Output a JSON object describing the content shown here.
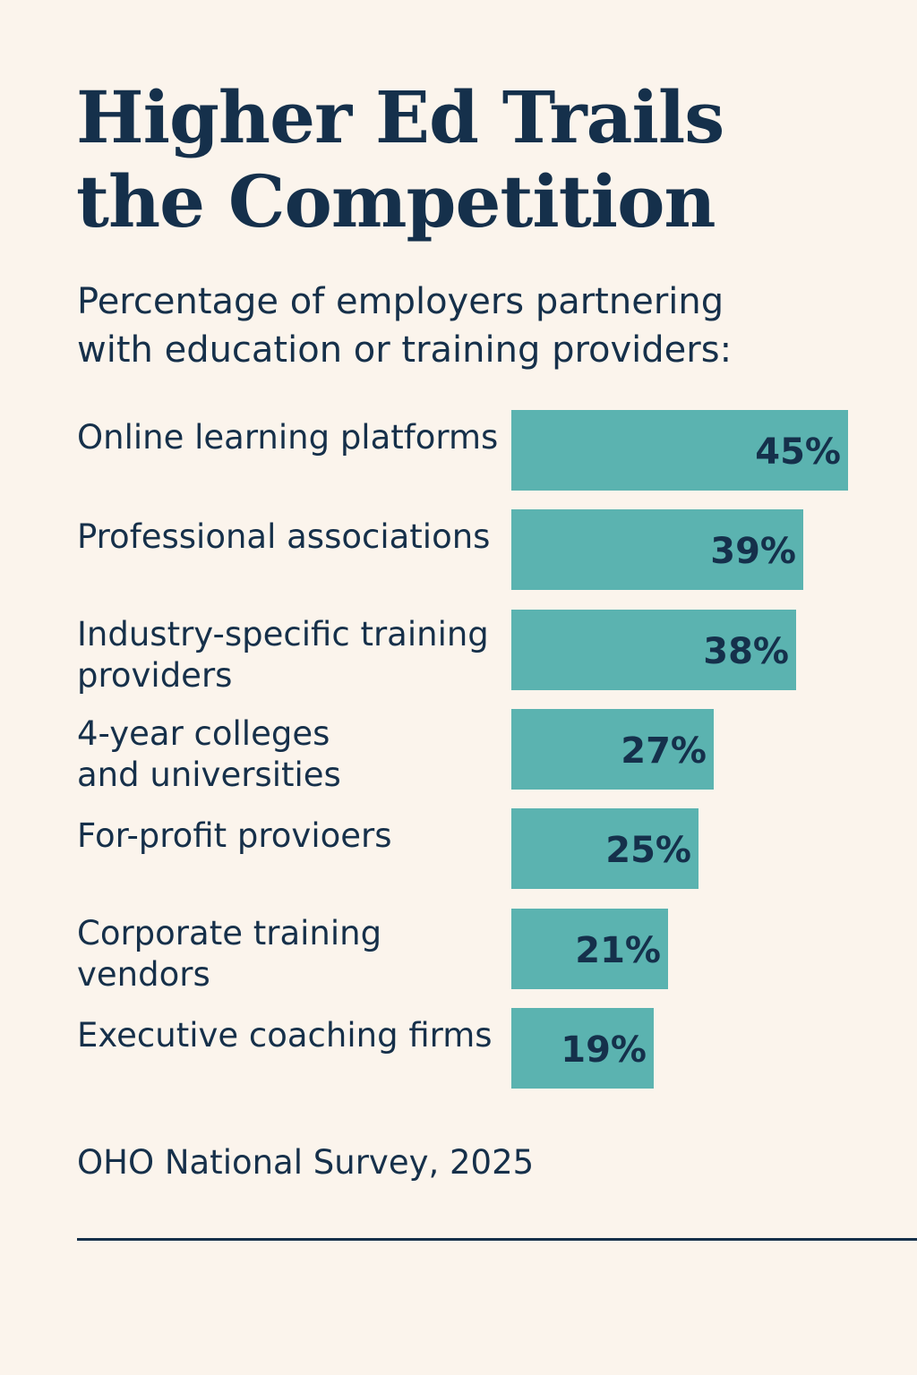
{
  "title_lines": [
    "Higher Ed Trails",
    "the Competition"
  ],
  "subtitle_lines": [
    "Percentage of employers partnering",
    "with education or training providers:"
  ],
  "chart_data": {
    "type": "bar",
    "orientation": "horizontal",
    "categories": [
      [
        "Online learning platforms"
      ],
      [
        "Professional associations"
      ],
      [
        "Industry-specific training",
        "providers"
      ],
      [
        "4-year colleges",
        "and universities"
      ],
      [
        "For-profit provioers"
      ],
      [
        "Corporate training",
        "vendors"
      ],
      [
        "Executive coaching firms"
      ]
    ],
    "values": [
      45,
      39,
      38,
      27,
      25,
      21,
      19
    ],
    "value_labels": [
      "45%",
      "39%",
      "38%",
      "27%",
      "25%",
      "21%",
      "19%"
    ],
    "unit": "%",
    "bar_color": "#5bb3b0",
    "value_label_color": "#15304b"
  },
  "source": "OHO National Survey, 2025",
  "colors": {
    "background": "#fbf4ec",
    "text": "#16304a",
    "rule": "#16304a"
  }
}
